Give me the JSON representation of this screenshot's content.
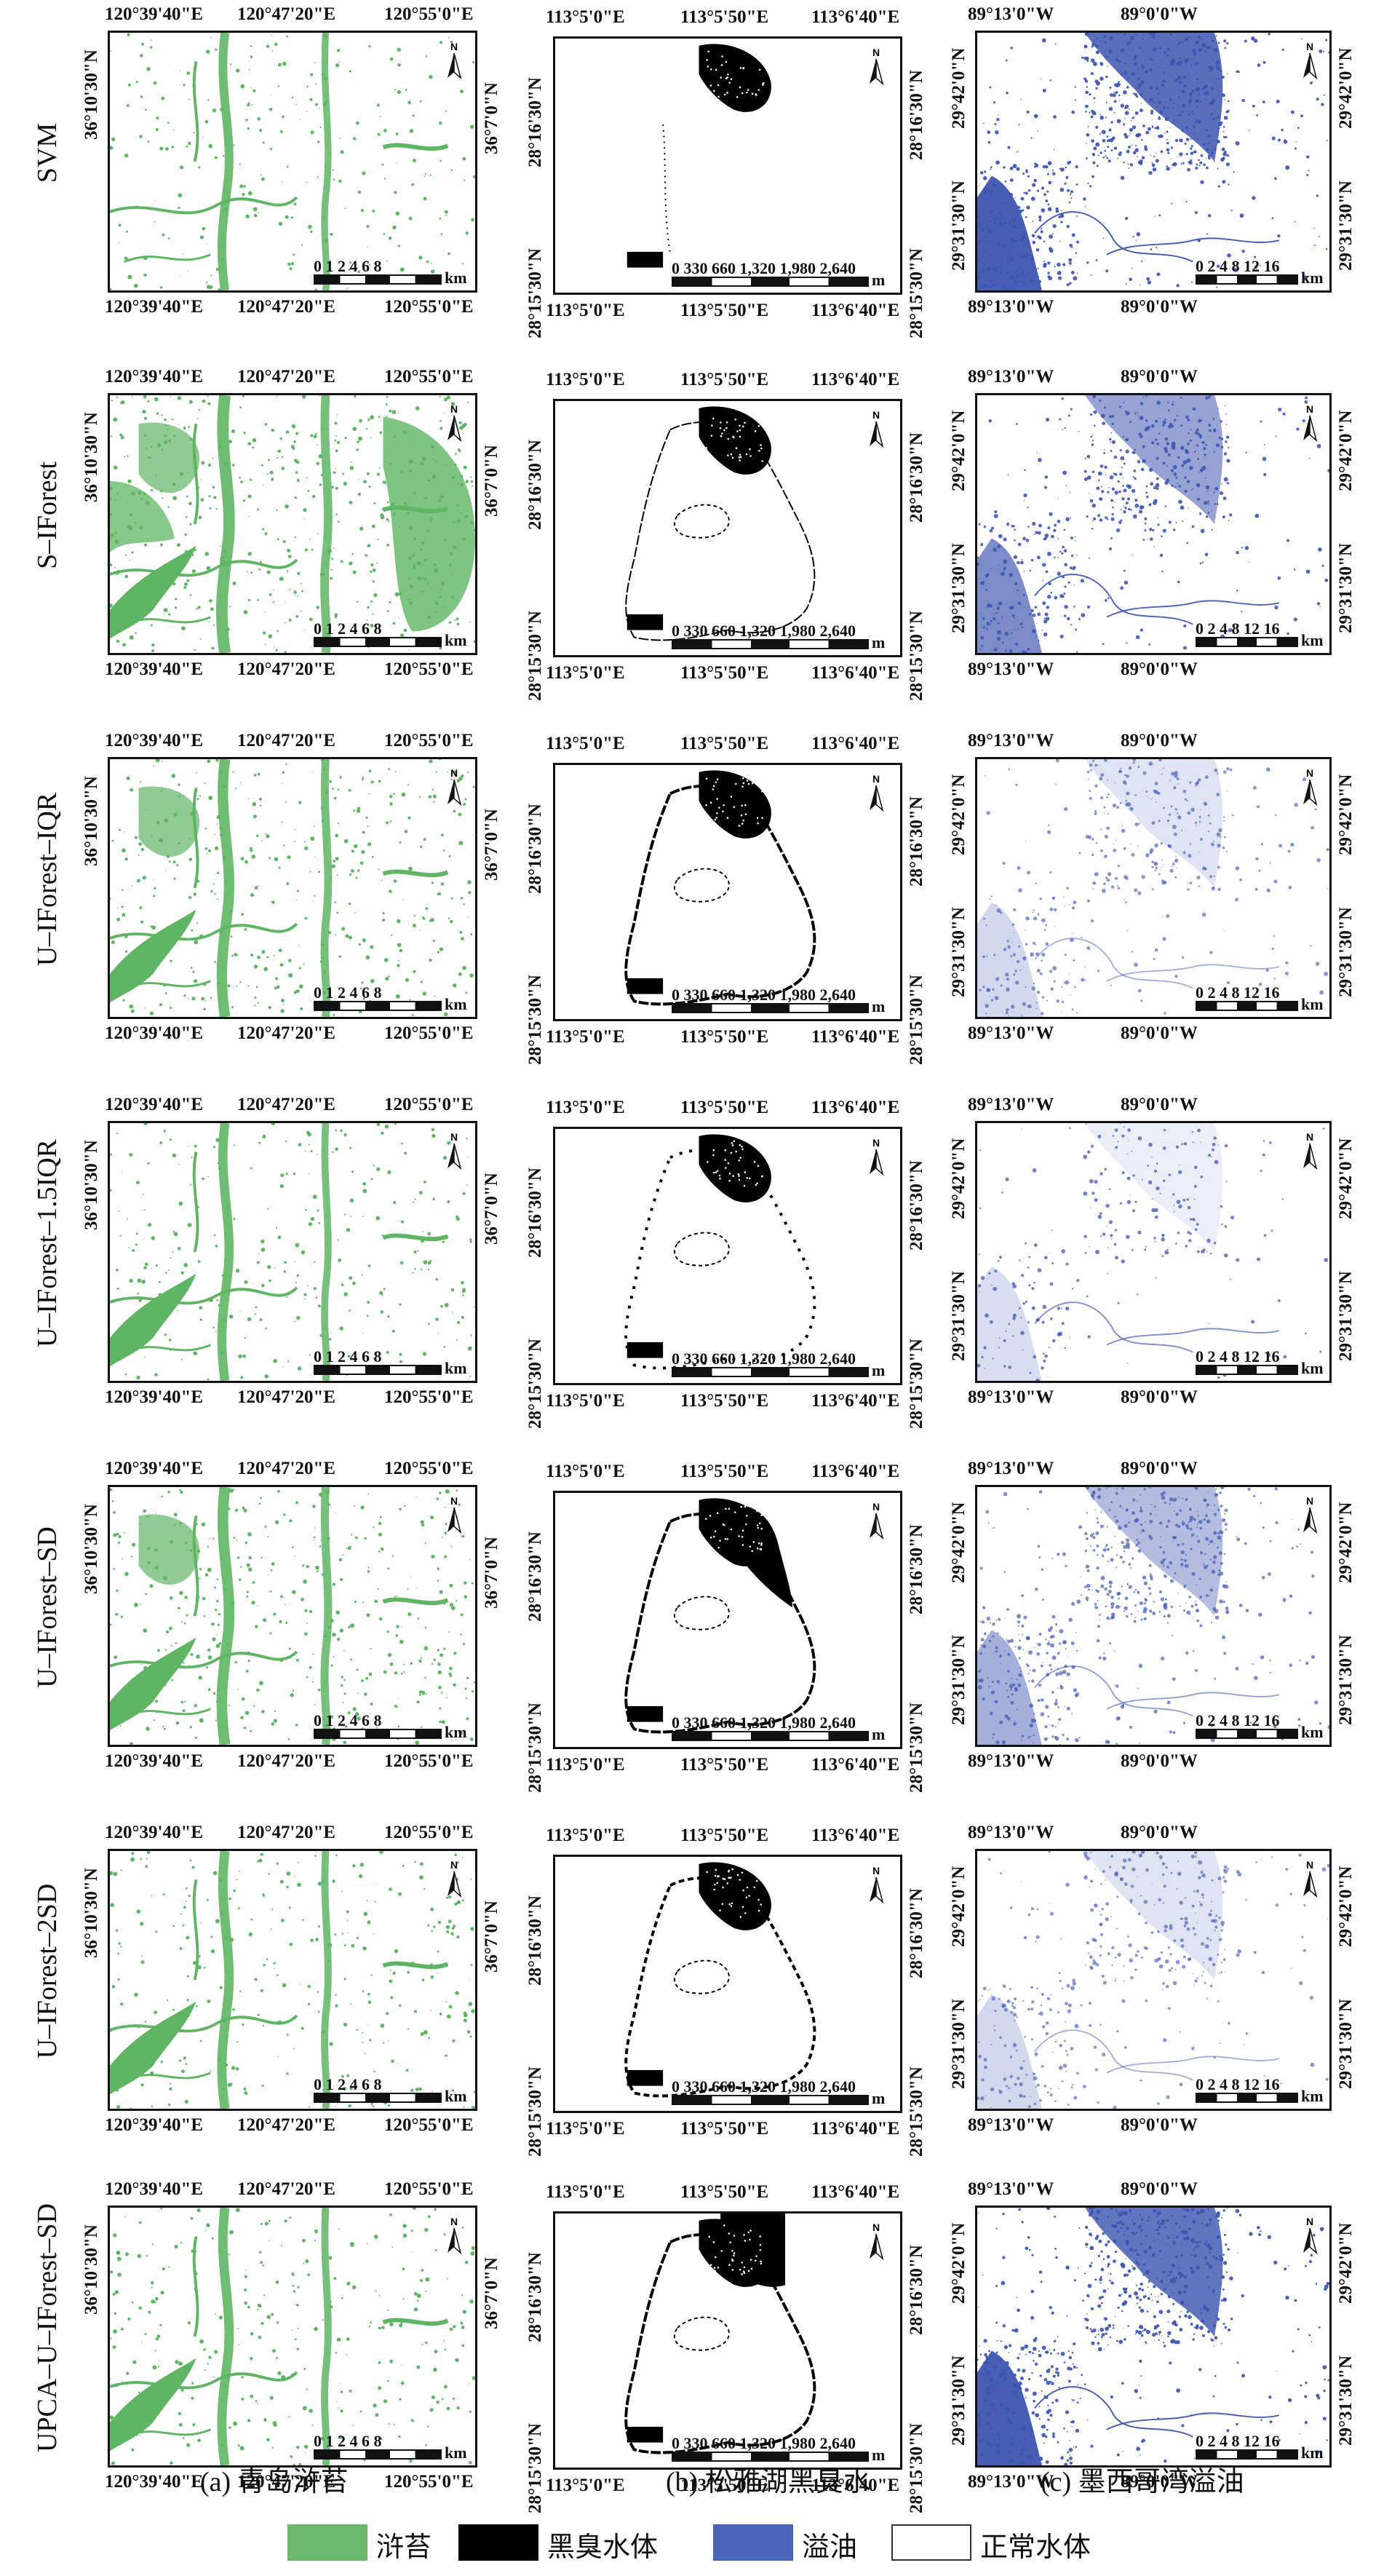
{
  "methods": [
    "SVM",
    "S–IForest",
    "U–IForest–IQR",
    "U–IForest–1.5IQR",
    "U–IForest–SD",
    "U–IForest–2SD",
    "UPCA–U–IForest–SD"
  ],
  "captions": [
    "(a) 青岛浒苔",
    "(b) 松雅湖黑臭水",
    "(c) 墨西哥湾溢油"
  ],
  "coords": {
    "a": {
      "top": [
        "120°39'40\"E",
        "120°47'20\"E",
        "120°55'0\"E"
      ],
      "left": "36°10'30\"N",
      "right": "36°7'0\"N"
    },
    "b": {
      "top": [
        "113°5'0\"E",
        "113°5'50\"E",
        "113°6'40\"E"
      ],
      "left": [
        "28°16'30\"N",
        "28°15'30\"N"
      ],
      "right": [
        "28°16'30\"N",
        "28°15'30\"N"
      ]
    },
    "c": {
      "top": [
        "89°13'0\"W",
        "89°0'0\"W"
      ],
      "left": [
        "29°42'0\"N",
        "29°31'30\"N"
      ],
      "right": [
        "29°42'0\"N",
        "29°31'30\"N"
      ]
    }
  },
  "north_label": "N",
  "scalebars": {
    "a": {
      "ticks": "0 1 2    4    6    8",
      "unit": "km"
    },
    "b": {
      "ticks": "0   330 660      1,320      1,980      2,640",
      "unit": "m"
    },
    "c": {
      "ticks": "0 2 4    8    12   16",
      "unit": "km"
    }
  },
  "legend": [
    {
      "label": "浒苔",
      "color": "#6db86f"
    },
    {
      "label": "黑臭水体",
      "color": "#000000"
    },
    {
      "label": "溢油",
      "color": "#4a64b8"
    },
    {
      "label": "正常水体",
      "color": "#ffffff"
    }
  ],
  "colors": {
    "algae": "#5fb564",
    "blackwater": "#000000",
    "oil": "#3d55b0"
  }
}
